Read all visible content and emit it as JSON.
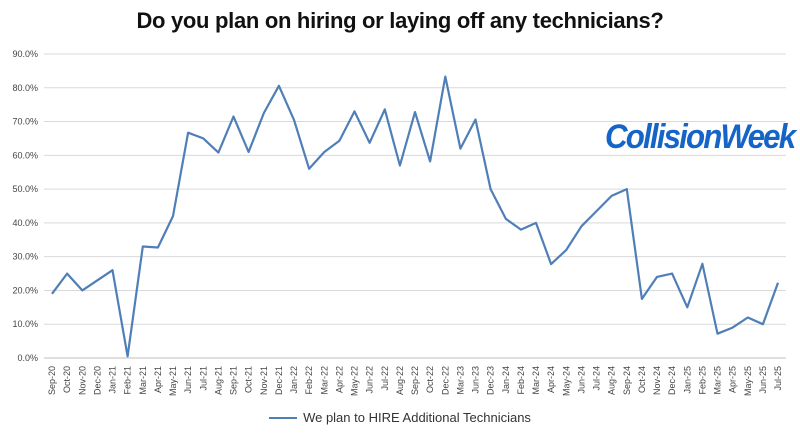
{
  "chart_data": {
    "type": "line",
    "title": "Do you plan on hiring or laying off any technicians?",
    "watermark": "CollisionWeek",
    "xlabel": "",
    "ylabel": "",
    "ylim": [
      0,
      90
    ],
    "y_tick_values": [
      0,
      10,
      20,
      30,
      40,
      50,
      60,
      70,
      80,
      90
    ],
    "y_tick_labels": [
      "0.0%",
      "10.0%",
      "20.0%",
      "30.0%",
      "40.0%",
      "50.0%",
      "60.0%",
      "70.0%",
      "80.0%",
      "90.0%"
    ],
    "grid": true,
    "legend_position": "bottom",
    "categories": [
      "Sep-20",
      "Oct-20",
      "Nov-20",
      "Dec-20",
      "Jan-21",
      "Feb-21",
      "Mar-21",
      "Apr-21",
      "May-21",
      "Jun-21",
      "Jul-21",
      "Aug-21",
      "Sep-21",
      "Oct-21",
      "Nov-21",
      "Dec-21",
      "Jan-22",
      "Feb-22",
      "Mar-22",
      "Apr-22",
      "May-22",
      "Jun-22",
      "Jul-22",
      "Aug-22",
      "Sep-22",
      "Oct-22",
      "Dec-22",
      "Mar-23",
      "Jun-23",
      "Dec-23",
      "Jan-24",
      "Feb-24",
      "Mar-24",
      "Apr-24",
      "May-24",
      "Jun-24",
      "Jul-24",
      "Aug-24",
      "Sep-24",
      "Oct-24",
      "Nov-24",
      "Dec-24",
      "Jan-25",
      "Feb-25",
      "Mar-25",
      "Apr-25",
      "May-25",
      "Jun-25",
      "Jul-25"
    ],
    "series": [
      {
        "name": "We plan to HIRE Additional Technicians",
        "color": "#4f7fb6",
        "values": [
          19,
          25,
          20,
          23,
          26,
          0.5,
          33,
          32.7,
          42,
          66.7,
          65,
          60.8,
          71.5,
          61,
          72.5,
          80.6,
          70.5,
          56,
          61,
          64.3,
          73,
          63.7,
          73.6,
          57,
          72.8,
          58.2,
          83.3,
          62,
          70.6,
          50,
          41.2,
          38,
          40,
          27.8,
          32,
          39,
          43.5,
          48,
          50,
          17.5,
          24,
          25,
          15,
          27.9,
          7.2,
          9,
          12,
          10,
          22.3
        ]
      }
    ]
  }
}
